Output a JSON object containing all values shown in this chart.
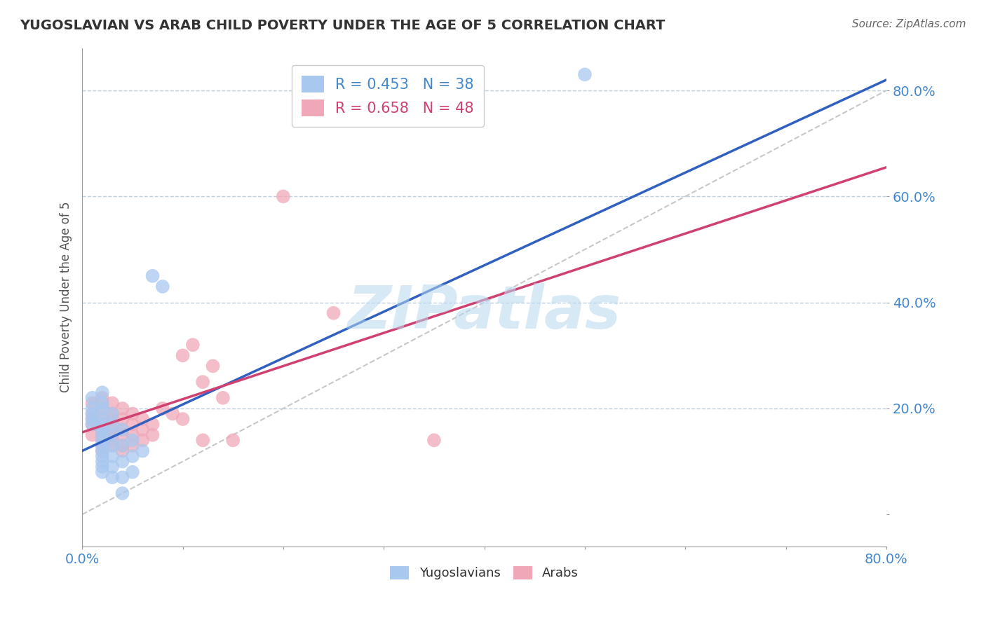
{
  "title": "YUGOSLAVIAN VS ARAB CHILD POVERTY UNDER THE AGE OF 5 CORRELATION CHART",
  "source": "Source: ZipAtlas.com",
  "ylabel": "Child Poverty Under the Age of 5",
  "xlim": [
    0,
    0.8
  ],
  "ylim": [
    -0.06,
    0.88
  ],
  "yticks": [
    0.0,
    0.2,
    0.4,
    0.6,
    0.8
  ],
  "xticks": [
    0.0,
    0.1,
    0.2,
    0.3,
    0.4,
    0.5,
    0.6,
    0.7,
    0.8
  ],
  "yugo_color": "#a8c8f0",
  "arab_color": "#f0a8b8",
  "yugo_line_color": "#3060c0",
  "arab_line_color": "#d04070",
  "ref_line_color": "#c8c8c8",
  "legend_yugo": "R = 0.453   N = 38",
  "legend_arab": "R = 0.658   N = 48",
  "watermark": "ZIPatlas",
  "background_color": "#ffffff",
  "grid_color": "#c0d0e0",
  "tick_color": "#4488cc",
  "yugo_scatter": [
    [
      0.01,
      0.22
    ],
    [
      0.01,
      0.2
    ],
    [
      0.01,
      0.19
    ],
    [
      0.01,
      0.18
    ],
    [
      0.01,
      0.17
    ],
    [
      0.02,
      0.23
    ],
    [
      0.02,
      0.21
    ],
    [
      0.02,
      0.2
    ],
    [
      0.02,
      0.18
    ],
    [
      0.02,
      0.17
    ],
    [
      0.02,
      0.16
    ],
    [
      0.02,
      0.15
    ],
    [
      0.02,
      0.14
    ],
    [
      0.02,
      0.13
    ],
    [
      0.02,
      0.12
    ],
    [
      0.02,
      0.11
    ],
    [
      0.02,
      0.1
    ],
    [
      0.02,
      0.09
    ],
    [
      0.02,
      0.08
    ],
    [
      0.03,
      0.19
    ],
    [
      0.03,
      0.17
    ],
    [
      0.03,
      0.15
    ],
    [
      0.03,
      0.13
    ],
    [
      0.03,
      0.11
    ],
    [
      0.03,
      0.09
    ],
    [
      0.03,
      0.07
    ],
    [
      0.04,
      0.16
    ],
    [
      0.04,
      0.13
    ],
    [
      0.04,
      0.1
    ],
    [
      0.04,
      0.07
    ],
    [
      0.04,
      0.04
    ],
    [
      0.05,
      0.14
    ],
    [
      0.05,
      0.11
    ],
    [
      0.05,
      0.08
    ],
    [
      0.06,
      0.12
    ],
    [
      0.07,
      0.45
    ],
    [
      0.08,
      0.43
    ],
    [
      0.5,
      0.83
    ]
  ],
  "arab_scatter": [
    [
      0.01,
      0.21
    ],
    [
      0.01,
      0.19
    ],
    [
      0.01,
      0.18
    ],
    [
      0.01,
      0.17
    ],
    [
      0.01,
      0.15
    ],
    [
      0.02,
      0.22
    ],
    [
      0.02,
      0.2
    ],
    [
      0.02,
      0.18
    ],
    [
      0.02,
      0.16
    ],
    [
      0.02,
      0.15
    ],
    [
      0.02,
      0.14
    ],
    [
      0.02,
      0.13
    ],
    [
      0.02,
      0.12
    ],
    [
      0.03,
      0.21
    ],
    [
      0.03,
      0.19
    ],
    [
      0.03,
      0.18
    ],
    [
      0.03,
      0.16
    ],
    [
      0.03,
      0.15
    ],
    [
      0.03,
      0.14
    ],
    [
      0.03,
      0.13
    ],
    [
      0.04,
      0.2
    ],
    [
      0.04,
      0.18
    ],
    [
      0.04,
      0.16
    ],
    [
      0.04,
      0.15
    ],
    [
      0.04,
      0.13
    ],
    [
      0.04,
      0.12
    ],
    [
      0.05,
      0.19
    ],
    [
      0.05,
      0.17
    ],
    [
      0.05,
      0.15
    ],
    [
      0.05,
      0.13
    ],
    [
      0.06,
      0.18
    ],
    [
      0.06,
      0.16
    ],
    [
      0.06,
      0.14
    ],
    [
      0.07,
      0.17
    ],
    [
      0.07,
      0.15
    ],
    [
      0.08,
      0.2
    ],
    [
      0.09,
      0.19
    ],
    [
      0.1,
      0.3
    ],
    [
      0.1,
      0.18
    ],
    [
      0.11,
      0.32
    ],
    [
      0.12,
      0.25
    ],
    [
      0.12,
      0.14
    ],
    [
      0.13,
      0.28
    ],
    [
      0.14,
      0.22
    ],
    [
      0.15,
      0.14
    ],
    [
      0.2,
      0.6
    ],
    [
      0.25,
      0.38
    ],
    [
      0.35,
      0.14
    ]
  ],
  "yugo_line_x": [
    0.0,
    0.8
  ],
  "yugo_line_y": [
    0.12,
    0.82
  ],
  "arab_line_x": [
    0.0,
    0.8
  ],
  "arab_line_y": [
    0.155,
    0.655
  ],
  "ref_line_x": [
    0.0,
    0.8
  ],
  "ref_line_y": [
    0.0,
    0.8
  ]
}
